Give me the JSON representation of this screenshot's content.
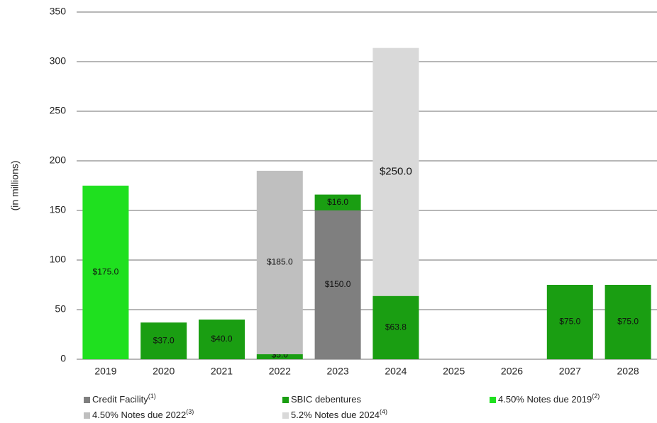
{
  "chart_data": {
    "type": "stacked_bar",
    "y_label": "(in millions)",
    "categories": [
      "2019",
      "2020",
      "2021",
      "2022",
      "2023",
      "2024",
      "2025",
      "2026",
      "2027",
      "2028"
    ],
    "ylim": [
      0,
      350
    ],
    "yticks": [
      0,
      50,
      100,
      150,
      200,
      250,
      300,
      350
    ],
    "grid": true,
    "series": [
      {
        "name": "Credit Facility",
        "footnote": "(1)",
        "color": "#7f7f7f",
        "values": [
          null,
          null,
          null,
          null,
          150,
          null,
          null,
          null,
          null,
          null
        ],
        "value_labels": [
          null,
          null,
          null,
          null,
          "$150.0",
          null,
          null,
          null,
          null,
          null
        ]
      },
      {
        "name": "SBIC debentures",
        "color": "#1a9e12",
        "values": [
          null,
          37,
          40,
          5,
          16,
          63.8,
          null,
          null,
          75,
          75
        ],
        "value_labels": [
          null,
          "$37.0",
          "$40.0",
          "$5.0",
          "$16.0",
          "$63.8",
          null,
          null,
          "$75.0",
          "$75.0"
        ]
      },
      {
        "name": "4.50% Notes due 2019",
        "footnote": "(2)",
        "color": "#1fe01f",
        "values": [
          175,
          null,
          null,
          null,
          null,
          null,
          null,
          null,
          null,
          null
        ],
        "value_labels": [
          "$175.0",
          null,
          null,
          null,
          null,
          null,
          null,
          null,
          null,
          null
        ]
      },
      {
        "name": "4.50% Notes due 2022",
        "footnote": "(3)",
        "color": "#bfbfbf",
        "values": [
          null,
          null,
          null,
          185,
          null,
          null,
          null,
          null,
          null,
          null
        ],
        "value_labels": [
          null,
          null,
          null,
          "$185.0",
          null,
          null,
          null,
          null,
          null,
          null
        ]
      },
      {
        "name": "5.2% Notes due 2024",
        "footnote": "(4)",
        "color": "#d9d9d9",
        "values": [
          null,
          null,
          null,
          null,
          null,
          250,
          null,
          null,
          null,
          null
        ],
        "value_labels": [
          null,
          null,
          null,
          null,
          null,
          "$250.0",
          null,
          null,
          null,
          null
        ]
      }
    ]
  }
}
